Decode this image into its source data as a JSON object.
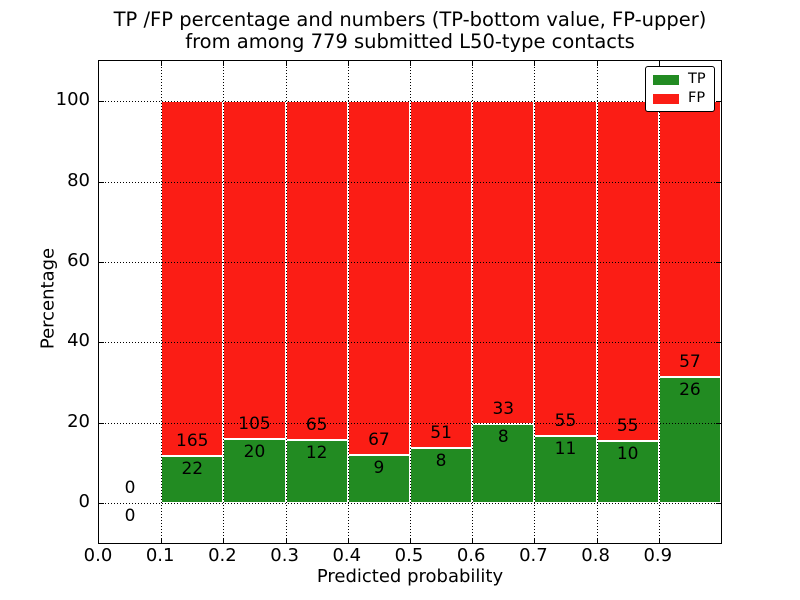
{
  "figure": {
    "title_line1": "TP /FP percentage and numbers (TP-bottom value, FP-upper)",
    "title_line2": "from among 779 submitted L50-type contacts"
  },
  "chart_data": {
    "type": "bar",
    "stacked": true,
    "title": "TP /FP percentage and numbers (TP-bottom value, FP-upper) from among 779 submitted L50-type contacts",
    "xlabel": "Predicted probability",
    "ylabel": "Percentage",
    "xlim": [
      0.0,
      1.0
    ],
    "ylim": [
      -10,
      110
    ],
    "x_tick_labels": [
      "0.0",
      "0.1",
      "0.2",
      "0.3",
      "0.4",
      "0.5",
      "0.6",
      "0.7",
      "0.8",
      "0.9"
    ],
    "x_tick_values": [
      0.0,
      0.1,
      0.2,
      0.3,
      0.4,
      0.5,
      0.6,
      0.7,
      0.8,
      0.9
    ],
    "y_tick_values": [
      0,
      20,
      40,
      60,
      80,
      100
    ],
    "grid": "dotted",
    "bar_width": 0.1,
    "colors": {
      "tp": "#228b22",
      "fp": "#fb1d15",
      "edge": "#ffffff"
    },
    "legend": {
      "position": "upper right",
      "entries": [
        {
          "name": "TP",
          "color": "#228b22"
        },
        {
          "name": "FP",
          "color": "#fb1d15"
        }
      ]
    },
    "bins": [
      {
        "x_start": 0.0,
        "tp_count": 0,
        "fp_count": 0,
        "tp_pct": 0,
        "fp_pct": 0
      },
      {
        "x_start": 0.1,
        "tp_count": 22,
        "fp_count": 165,
        "tp_pct": 11.76,
        "fp_pct": 88.24
      },
      {
        "x_start": 0.2,
        "tp_count": 20,
        "fp_count": 105,
        "tp_pct": 16.0,
        "fp_pct": 84.0
      },
      {
        "x_start": 0.3,
        "tp_count": 12,
        "fp_count": 65,
        "tp_pct": 15.58,
        "fp_pct": 84.42
      },
      {
        "x_start": 0.4,
        "tp_count": 9,
        "fp_count": 67,
        "tp_pct": 11.84,
        "fp_pct": 88.16
      },
      {
        "x_start": 0.5,
        "tp_count": 8,
        "fp_count": 51,
        "tp_pct": 13.56,
        "fp_pct": 86.44
      },
      {
        "x_start": 0.6,
        "tp_count": 8,
        "fp_count": 33,
        "tp_pct": 19.51,
        "fp_pct": 80.49
      },
      {
        "x_start": 0.7,
        "tp_count": 11,
        "fp_count": 55,
        "tp_pct": 16.67,
        "fp_pct": 83.33
      },
      {
        "x_start": 0.8,
        "tp_count": 10,
        "fp_count": 55,
        "tp_pct": 15.38,
        "fp_pct": 84.62
      },
      {
        "x_start": 0.9,
        "tp_count": 26,
        "fp_count": 57,
        "tp_pct": 31.33,
        "fp_pct": 68.67
      }
    ]
  }
}
